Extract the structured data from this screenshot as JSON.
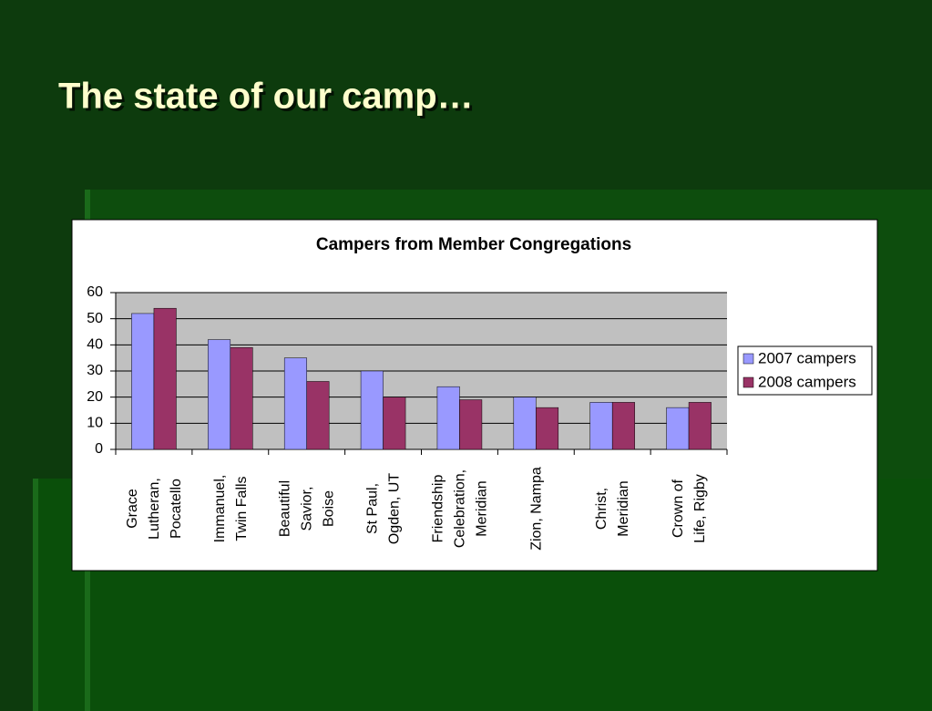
{
  "slide_title": "The state of our camp…",
  "chart_data": {
    "type": "bar",
    "title": "Campers from Member Congregations",
    "categories": [
      "Grace\nLutheran,\nPocatello",
      "Immanuel,\nTwin Falls",
      "Beautiful\nSavior,\nBoise",
      "St Paul,\nOgden, UT",
      "Friendship\nCelebration,\nMeridian",
      "Zion, Nampa",
      "Christ,\nMeridian",
      "Crown of\nLife, Rigby"
    ],
    "series": [
      {
        "name": "2007 campers",
        "color": "#9999ff",
        "values": [
          52,
          42,
          35,
          30,
          24,
          20,
          18,
          16
        ]
      },
      {
        "name": "2008 campers",
        "color": "#993366",
        "values": [
          54,
          39,
          26,
          20,
          19,
          16,
          18,
          18
        ]
      }
    ],
    "ylim": [
      0,
      60
    ],
    "yticks": [
      0,
      10,
      20,
      30,
      40,
      50,
      60
    ],
    "grid": true,
    "legend": "right"
  }
}
